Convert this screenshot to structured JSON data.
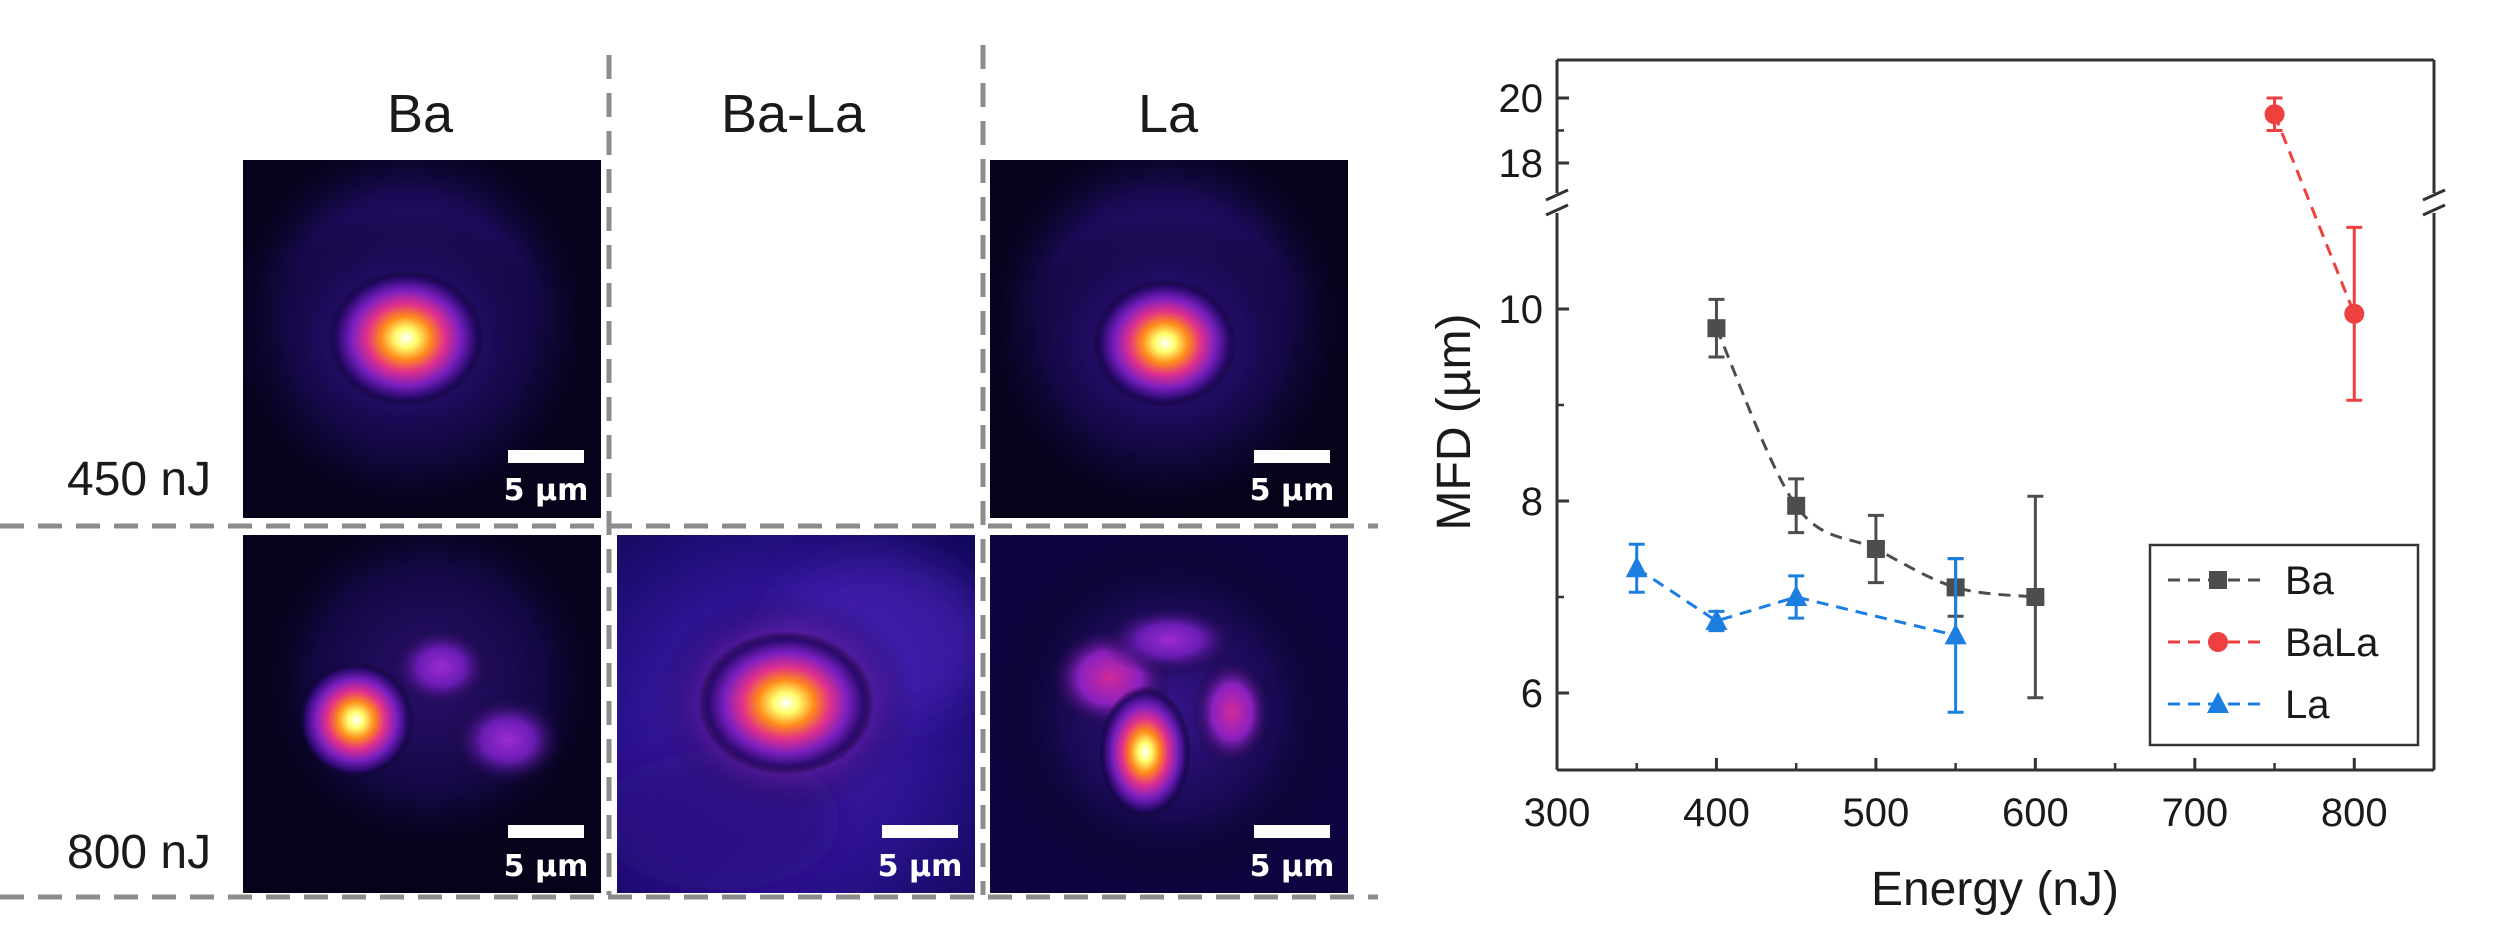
{
  "panel_a": {
    "column_headers": [
      "Ba",
      "Ba-La",
      "La"
    ],
    "row_labels": [
      "450 nJ",
      "800 nJ"
    ],
    "scale_bar_label": "5 µm",
    "mode_images": [
      {
        "column": "Ba",
        "energy": "450 nJ",
        "present": true,
        "pattern": "single-lobe"
      },
      {
        "column": "Ba-La",
        "energy": "450 nJ",
        "present": false,
        "pattern": "none"
      },
      {
        "column": "La",
        "energy": "450 nJ",
        "present": true,
        "pattern": "single-lobe"
      },
      {
        "column": "Ba",
        "energy": "800 nJ",
        "present": true,
        "pattern": "three-lobe"
      },
      {
        "column": "Ba-La",
        "energy": "800 nJ",
        "present": true,
        "pattern": "single-lobe-broad"
      },
      {
        "column": "La",
        "energy": "800 nJ",
        "present": true,
        "pattern": "multi-lobe"
      }
    ],
    "colormap": [
      "#000010",
      "#2a0a6e",
      "#7a1fc0",
      "#e0308c",
      "#ff8a1a",
      "#ffff6e",
      "#ffffff"
    ]
  },
  "chart_data": {
    "type": "scatter",
    "title": "",
    "xlabel": "Energy (nJ)",
    "ylabel": "MFD (µm)",
    "xlim": [
      300,
      850
    ],
    "xticks": [
      300,
      400,
      500,
      600,
      700,
      800
    ],
    "ylim_lower": [
      5,
      11
    ],
    "yticks_lower": [
      6,
      8,
      10
    ],
    "ylim_upper": [
      17,
      21
    ],
    "yticks_upper": [
      18,
      20
    ],
    "axis_break": "y between 11 and 17",
    "grid": false,
    "legend_position": "bottom-right",
    "series": [
      {
        "name": "Ba",
        "color": "#4d4d4d",
        "marker": "square",
        "line": "dashed",
        "x": [
          400,
          450,
          500,
          550,
          600
        ],
        "y": [
          9.8,
          7.95,
          7.5,
          7.1,
          7.0
        ],
        "yerr": [
          0.3,
          0.28,
          0.35,
          0.3,
          1.05
        ]
      },
      {
        "name": "BaLa",
        "color": "#ef4040",
        "marker": "circle",
        "line": "dashed",
        "x": [
          750,
          800
        ],
        "y": [
          19.5,
          9.95
        ],
        "yerr": [
          0.5,
          0.9
        ]
      },
      {
        "name": "La",
        "color": "#1c7fe0",
        "marker": "triangle",
        "line": "dashed",
        "x": [
          350,
          400,
          450,
          550
        ],
        "y": [
          7.3,
          6.75,
          7.0,
          6.6
        ],
        "yerr": [
          0.25,
          0.1,
          0.22,
          0.8
        ]
      }
    ]
  }
}
